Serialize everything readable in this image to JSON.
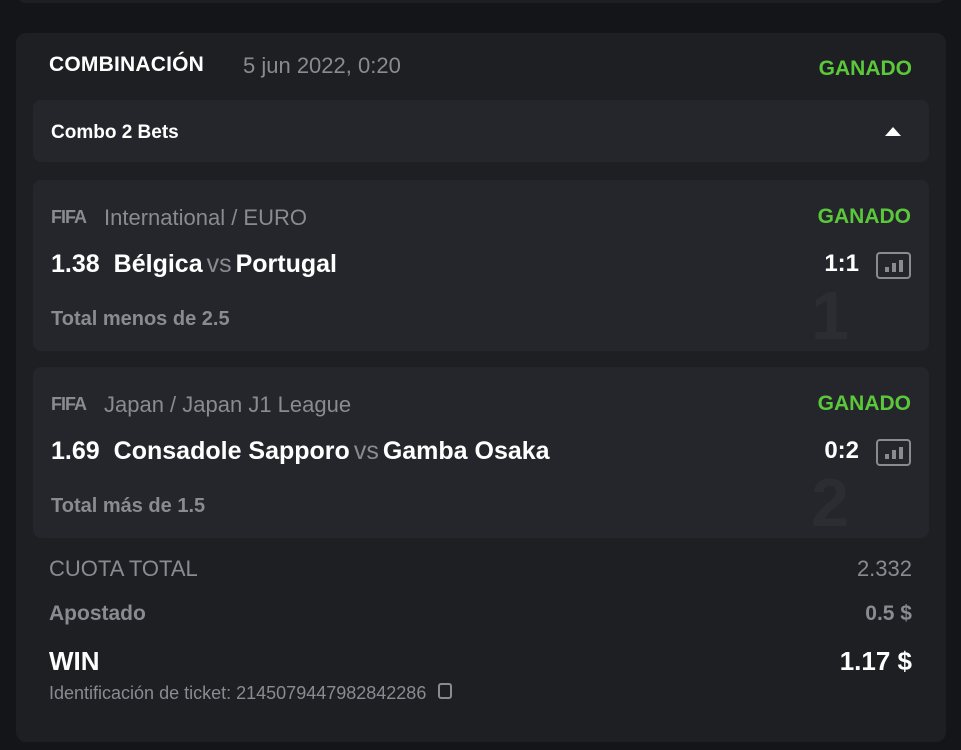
{
  "ticket": {
    "type": "COMBINACIÓN",
    "date": "5 jun 2022, 0:20",
    "status": "GANADO",
    "status_color": "#5ac83a",
    "combo_label": "Combo 2 Bets",
    "bets": [
      {
        "index": "1",
        "sport_logo": "FIFA",
        "league": "International / EURO",
        "status": "GANADO",
        "odd": "1.38",
        "home": "Bélgica",
        "vs": "vs",
        "away": "Portugal",
        "score": "1:1",
        "market": "Total menos de 2.5"
      },
      {
        "index": "2",
        "sport_logo": "FIFA",
        "league": "Japan / Japan J1 League",
        "status": "GANADO",
        "odd": "1.69",
        "home": "Consadole Sapporo",
        "vs": "vs",
        "away": "Gamba Osaka",
        "score": "0:2",
        "market": "Total más de 1.5"
      }
    ],
    "total_odds_label": "CUOTA TOTAL",
    "total_odds": "2.332",
    "staked_label": "Apostado",
    "staked": "0.5 $",
    "win_label": "WIN",
    "win": "1.17 $",
    "ticket_id_label": "Identificación de ticket:",
    "ticket_id": "2145079447982842286"
  }
}
